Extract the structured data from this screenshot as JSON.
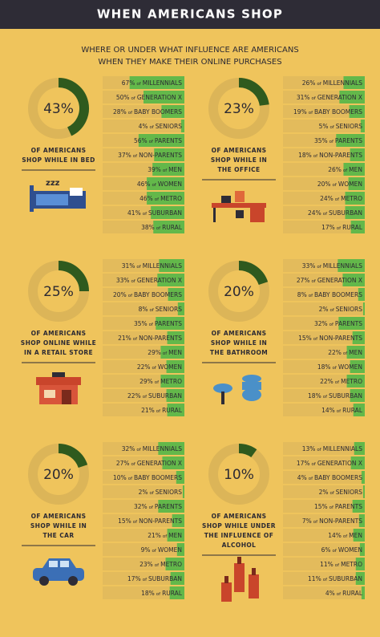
{
  "title": "WHEN AMERICANS SHOP",
  "subtitle": [
    "WHERE OR UNDER WHAT INFLUENCE ARE AMERICANS",
    "WHEN THEY MAKE THEIR ONLINE PURCHASES"
  ],
  "connector": "of",
  "groups": [
    "MILLENNIALS",
    "GENERATION X",
    "BABY BOOMERS",
    "SENIORS",
    "PARENTS",
    "NON-PARENTS",
    "MEN",
    "WOMEN",
    "METRO",
    "SUBURBAN",
    "RURAL"
  ],
  "panels": [
    {
      "percent": 43,
      "percent_label": "43%",
      "caption": [
        "OF AMERICANS",
        "SHOP WHILE IN BED"
      ],
      "values": [
        67,
        50,
        28,
        4,
        56,
        37,
        39,
        46,
        46,
        41,
        38
      ],
      "value_labels": [
        "67%",
        "50%",
        "28%",
        "4%",
        "56%",
        "37%",
        "39%",
        "46%",
        "46%",
        "41%",
        "38%"
      ]
    },
    {
      "percent": 23,
      "percent_label": "23%",
      "caption": [
        "OF AMERICANS",
        "SHOP WHILE IN",
        "THE OFFICE"
      ],
      "values": [
        26,
        31,
        19,
        5,
        35,
        18,
        26,
        20,
        24,
        24,
        17
      ],
      "value_labels": [
        "26%",
        "31%",
        "19%",
        "5%",
        "35%",
        "18%",
        "26%",
        "20%",
        "24%",
        "24%",
        "17%"
      ]
    },
    {
      "percent": 25,
      "percent_label": "25%",
      "caption": [
        "OF AMERICANS",
        "SHOP ONLINE WHILE",
        "IN A RETAIL STORE"
      ],
      "values": [
        31,
        33,
        20,
        8,
        35,
        21,
        29,
        22,
        29,
        22,
        21
      ],
      "value_labels": [
        "31%",
        "33%",
        "20%",
        "8%",
        "35%",
        "21%",
        "29%",
        "22%",
        "29%",
        "22%",
        "21%"
      ]
    },
    {
      "percent": 20,
      "percent_label": "20%",
      "caption": [
        "OF AMERICANS",
        "SHOP WHILE IN",
        "THE BATHROOM"
      ],
      "values": [
        33,
        27,
        8,
        2,
        32,
        15,
        22,
        18,
        22,
        18,
        14
      ],
      "value_labels": [
        "33%",
        "27%",
        "8%",
        "2%",
        "32%",
        "15%",
        "22%",
        "18%",
        "22%",
        "18%",
        "14%"
      ]
    },
    {
      "percent": 20,
      "percent_label": "20%",
      "caption": [
        "OF AMERICANS",
        "SHOP WHILE IN",
        "THE CAR"
      ],
      "values": [
        32,
        27,
        10,
        2,
        32,
        15,
        21,
        9,
        23,
        17,
        18
      ],
      "value_labels": [
        "32%",
        "27%",
        "10%",
        "2%",
        "32%",
        "15%",
        "21%",
        "9%",
        "23%",
        "17%",
        "18%"
      ]
    },
    {
      "percent": 10,
      "percent_label": "10%",
      "caption": [
        "OF AMERICANS",
        "SHOP WHILE UNDER",
        "THE INFLUENCE OF",
        "ALCOHOL"
      ],
      "values": [
        13,
        17,
        4,
        2,
        15,
        7,
        14,
        6,
        11,
        11,
        4
      ],
      "value_labels": [
        "13%",
        "17%",
        "4%",
        "2%",
        "15%",
        "7%",
        "14%",
        "6%",
        "11%",
        "11%",
        "4%"
      ]
    }
  ]
}
